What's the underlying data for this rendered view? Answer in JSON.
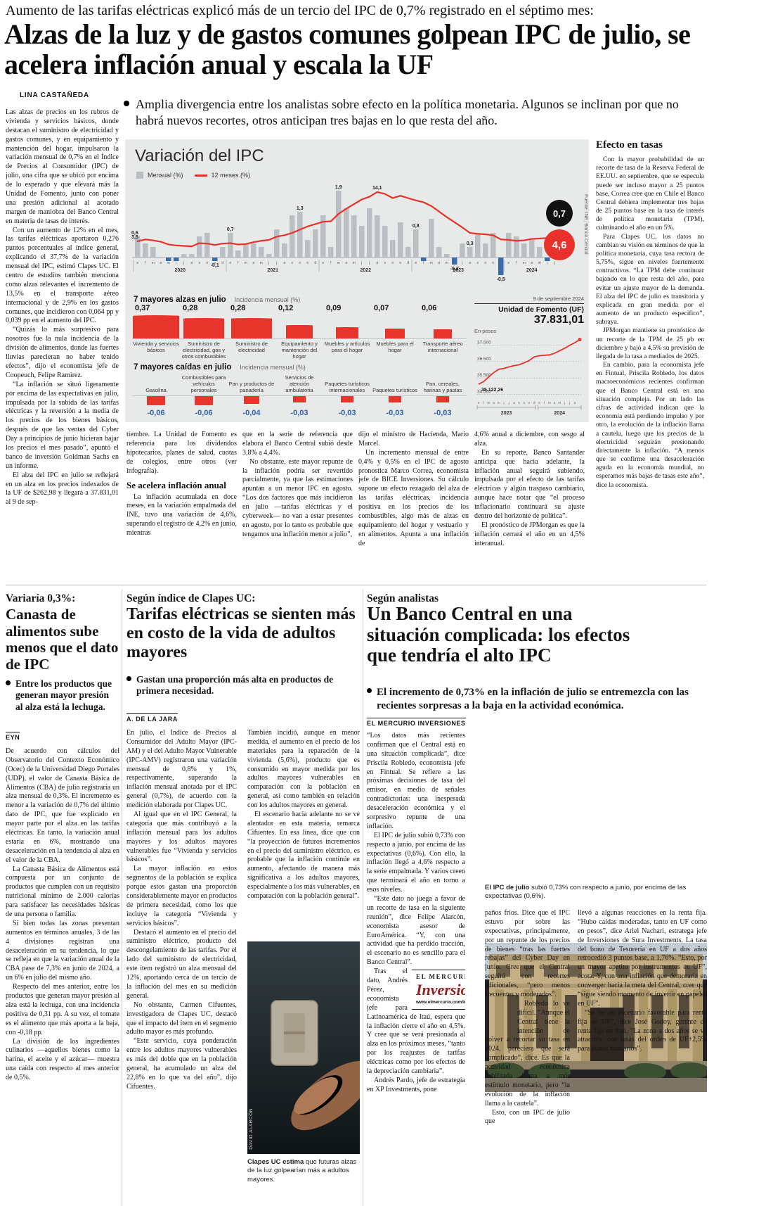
{
  "lead": {
    "kicker": "Aumento de las tarifas eléctricas explicó más de un tercio del IPC de 0,7% registrado en el séptimo mes:",
    "headline": "Alzas de la luz y de gastos comunes golpean IPC de julio, se acelera inflación anual y escala la UF",
    "byline": "LINA CASTAÑEDA",
    "lede": "Amplia divergencia entre los analistas sobre efecto en la política monetaria. Algunos se inclinan por que no habrá nuevos recortes, otros anticipan tres bajas en lo que resta del año.",
    "col1": [
      "Las alzas de precios en los rubros de vivienda y servicios básicos, donde destacan el suministro de electricidad y gastos comunes, y en equipamiento y mantención del hogar, impulsaron la variación mensual de 0,7% en el Índice de Precios al Consumidor (IPC) de julio, una cifra que se ubicó por encima de lo esperado y que elevará más la Unidad de Fomento, junto con poner una presión adicional al acotado margen de maniobra del Banco Central en materia de tasas de interés.",
      "Con un aumento de 12% en el mes, las tarifas eléctricas aportaron 0,276 puntos porcentuales al índice general, explicando el 37,7% de la variación mensual del IPC, estimó Clapes UC. El centro de estudios también menciona como alzas relevantes el incremento de 13,5% en el transporte aéreo internacional y de 2,9% en los gastos comunes, que incidieron con 0,064 pp y 0,039 pp en el aumento del IPC.",
      "“Quizás lo más sorpresivo para nosotros fue la nula incidencia de la división de alimentos, donde las fuertes lluvias parecieran no haber tenido efectos”, dijo el economista jefe de Coopeuch, Felipe Ramírez.",
      "“La inflación se situó ligeramente por encima de las expectativas en julio, impulsada por la subida de las tarifas eléctricas y la reversión a la media de los precios de los bienes básicos, después de que las ventas del Cyber Day a principios de junio hicieran bajar los precios el mes pasado”, apuntó el banco de inversión Goldman Sachs en un informe.",
      "El alza del IPC en julio se reflejará en un alza en los precios indexados de la UF de $262,98 y llegará a 37.831,01 al 9 de sep-"
    ],
    "cont1_pre": [
      "tiembre. La Unidad de Fomento es referencia para los dividendos hipotecarios, planes de salud, cuotas de colegios, entre otros (ver infografía)."
    ],
    "subhead": "Se acelera inflación anual",
    "cont1_post": [
      "La inflación acumulada en doce meses, en la variación empalmada del INE, tuvo una variación de 4,6%, superando el registro de 4,2% en junio, mientras"
    ],
    "cont2": [
      "que en la serie de referencia que elabora el Banco Central subió desde 3,8% a 4,4%.",
      "No obstante, este mayor repunte de la inflación podría ser revertido parcialmente, ya que las estimaciones apuntan a un menor IPC en agosto. “Los dos factores que más incidieron en julio —tarifas eléctricas y el cyberweek— no van a estar presentes en agosto, por lo tanto es probable que tengamos una inflación menor a julio”,"
    ],
    "cont3": [
      "dijo el ministro de Hacienda, Mario Marcel.",
      "Un incremento mensual de entre 0,4% y 0,5% en el IPC de agosto pronostica Marco Correa, economista jefe de BICE Inversiones. Su cálculo supone un efecto rezagado del alza de las tarifas eléctricas, incidencia positiva en los precios de los combustibles, algo más de alzas en equipamiento del hogar y vestuario y en alimentos. Apunta a una inflación de"
    ],
    "cont4": [
      "4,6% anual a diciembre, con sesgo al alza.",
      "En su reporte, Banco Santander anticipa que hacia adelante, la inflación anual seguirá subiendo, impulsada por el efecto de las tarifas eléctricas y algún traspaso cambiario, aunque hace notar que “el proceso inflacionario continuará su ajuste dentro del horizonte de política”.",
      "El pronóstico de JPMorgan es que la inflación cerrará el año en un 4,5% interanual."
    ]
  },
  "efecto": {
    "title": "Efecto en tasas",
    "paragraphs": [
      "Con la mayor probabilidad de un recorte de tasa de la Reserva Federal de EE.UU. en septiembre, que se especula puede ser incluso mayor a 25 puntos base, Correa cree que en Chile el Banco Central debiera implementar tres bajas de 25 puntos base en la tasa de interés de política monetaria (TPM), culminando el año en un 5%.",
      "Para Clapes UC, los datos no cambian su visión en términos de que la política monetaria, cuya tasa rectora de 5,75%, sigue en niveles fuertemente contractivos. “La TPM debe continuar bajando en lo que resta del año, para evitar un ajuste mayor de la demanda. El alza del IPC de julio es transitoria y explicada en gran medida por el aumento de un producto específico”, subraya.",
      "JPMorgan mantiene su pronóstico de un recorte de la TPM de 25 pb en diciembre y bajó a 4,5% su previsión de llegada de la tasa a mediados de 2025.",
      "En cambio, para la economista jefe en Fintual, Priscila Robledo, los datos macroeconómicos recientes confirman que el Banco Central está en una situación compleja. Por un lado las cifras de actividad indican que la economía está perdiendo impulso y por otro, la evolución de la inflación llama a cautela, luego que los precios de la electricidad seguirán presionando directamente la inflación. “A menos que se confirme una desaceleración aguda en la economía mundial, no esperamos más bajas de tasas este año”, dice la economista."
    ]
  },
  "infographic": {
    "title": "Variación del IPC",
    "legend_monthly": "Mensual (%)",
    "legend_12m": "12 meses (%)",
    "final_monthly": "0,7",
    "final_annual": "4,6",
    "source": "Fuente: INE, Banco Central",
    "alzas": {
      "heading": "7 mayores alzas en julio",
      "subheading": "Incidencia mensual (%)",
      "items": [
        {
          "value": "0,37",
          "num": 0.37,
          "label": "Vivienda y servicios básicos"
        },
        {
          "value": "0,28",
          "num": 0.28,
          "label": "Suministro de electricidad, gas y otros combustibles"
        },
        {
          "value": "0,28",
          "num": 0.28,
          "label": "Suministro de electricidad"
        },
        {
          "value": "0,12",
          "num": 0.12,
          "label": "Equipamiento y mantención del hogar"
        },
        {
          "value": "0,09",
          "num": 0.09,
          "label": "Muebles y artículos para el hogar"
        },
        {
          "value": "0,07",
          "num": 0.07,
          "label": "Muebles para el hogar"
        },
        {
          "value": "0,06",
          "num": 0.06,
          "label": "Transporte aéreo internacional"
        }
      ]
    },
    "caidas": {
      "heading": "7 mayores caídas en julio",
      "subheading": "Incidencia mensual (%)",
      "items": [
        {
          "value": "-0,06",
          "num": 0.06,
          "label": "Gasolina"
        },
        {
          "value": "-0,06",
          "num": 0.06,
          "label": "Combustibles para vehículos personales"
        },
        {
          "value": "-0,04",
          "num": 0.04,
          "label": "Pan y productos de panadería"
        },
        {
          "value": "-0,03",
          "num": 0.03,
          "label": "Servicios de atención ambulatoria"
        },
        {
          "value": "-0,03",
          "num": 0.03,
          "label": "Paquetes turísticos internacionales"
        },
        {
          "value": "-0,03",
          "num": 0.03,
          "label": "Paquetes turísticos"
        },
        {
          "value": "-0,03",
          "num": 0.03,
          "label": "Pan, cereales, harinas y pastas"
        }
      ]
    },
    "uf": {
      "date": "9 de septiembre 2024",
      "title": "Unidad de Fomento (UF)",
      "value": "37.831,01",
      "unit": "En pesos"
    }
  },
  "chart_data": [
    {
      "id": "ipc",
      "type": "bar",
      "title": "Variación del IPC",
      "legend": [
        "Mensual (%)",
        "12 meses (%)"
      ],
      "years": [
        "2020",
        "2021",
        "2022",
        "2023",
        "2024"
      ],
      "month_letters": [
        "e",
        "f",
        "m",
        "a",
        "m",
        "j",
        "j",
        "a",
        "s",
        "o",
        "n",
        "d"
      ],
      "monthly": [
        0.6,
        0.4,
        0.3,
        0.0,
        -0.1,
        -0.1,
        0.1,
        0.1,
        0.6,
        0.7,
        -0.1,
        0.3,
        0.7,
        0.2,
        0.4,
        0.4,
        0.3,
        0.1,
        0.8,
        0.4,
        1.2,
        1.3,
        0.5,
        0.8,
        1.2,
        0.3,
        1.9,
        1.4,
        1.2,
        0.9,
        1.4,
        1.2,
        0.9,
        0.5,
        1.0,
        0.3,
        0.8,
        -0.1,
        1.1,
        0.3,
        0.1,
        -0.2,
        0.4,
        0.3,
        0.7,
        0.4,
        0.7,
        -0.5,
        0.7,
        0.6,
        0.4,
        0.5,
        0.3,
        -0.1,
        0.7
      ],
      "twelve_month": [
        3.5,
        3.9,
        3.7,
        3.4,
        2.8,
        2.6,
        2.5,
        2.4,
        3.1,
        3.0,
        2.7,
        3.0,
        3.1,
        2.8,
        2.9,
        3.3,
        3.6,
        3.8,
        4.5,
        4.8,
        5.3,
        6.0,
        6.7,
        7.2,
        7.7,
        7.8,
        9.4,
        10.5,
        11.5,
        12.5,
        13.1,
        14.1,
        13.7,
        12.8,
        13.3,
        12.8,
        12.3,
        11.9,
        11.1,
        9.9,
        8.7,
        7.6,
        6.5,
        5.3,
        5.1,
        5.0,
        4.8,
        3.9,
        3.8,
        3.6,
        3.7,
        4.0,
        4.1,
        4.2,
        4.6
      ],
      "callouts": [
        {
          "index": 0,
          "text": "0,6",
          "series": "bar"
        },
        {
          "index": 10,
          "text": "-0,1",
          "series": "bar"
        },
        {
          "index": 12,
          "text": "0,7",
          "series": "bar"
        },
        {
          "index": 21,
          "text": "1,3",
          "series": "bar"
        },
        {
          "index": 26,
          "text": "1,9",
          "series": "bar"
        },
        {
          "index": 0,
          "text": "3,5",
          "series": "line"
        },
        {
          "index": 31,
          "text": "14,1",
          "series": "line"
        },
        {
          "index": 36,
          "text": "0,8",
          "series": "bar"
        },
        {
          "index": 41,
          "text": "-0,2",
          "series": "bar"
        },
        {
          "index": 43,
          "text": "0,3",
          "series": "bar"
        },
        {
          "index": 47,
          "text": "-0,5",
          "series": "bar"
        }
      ],
      "source": "Fuente: INE, Banco Central"
    },
    {
      "id": "uf",
      "type": "line",
      "title": "Unidad de Fomento (UF)",
      "date_label": "9 de septiembre 2024",
      "value_label": "37.831,01",
      "unit_label": "En pesos",
      "start_label": "35.122,26",
      "gridlines": [
        {
          "label": "37.500",
          "value": 37500
        },
        {
          "label": "36.500",
          "value": 36500
        },
        {
          "label": "35.500",
          "value": 35500
        },
        {
          "label": "34.500",
          "value": 34500
        }
      ],
      "ylim": [
        34400,
        37900
      ],
      "x_letters_2023": "efmamjjasond",
      "x_letters_2024": "efmamjja",
      "years": [
        "2023",
        "2024"
      ],
      "values": [
        35122,
        35280,
        35560,
        35830,
        36030,
        36080,
        36170,
        36250,
        36300,
        36420,
        36560,
        36780,
        36850,
        36880,
        36900,
        37000,
        37150,
        37300,
        37480,
        37640,
        37831
      ]
    }
  ],
  "canasta": {
    "kicker": "Variaría 0,3%:",
    "headline": "Canasta de alimentos sube menos que el dato de IPC",
    "dek": "Entre los productos que generan mayor presión al alza está la lechuga.",
    "byline": "EYN",
    "paragraphs": [
      "De acuerdo con cálculos del Observatorio del Contexto Económico (Ocec) de la Universidad Diego Portales (UDP), el valor de Canasta Básica de Alimentos (CBA) de julio registraría un alza mensual de 0,3%. El incremento es menor a la variación de 0,7% del último dato de IPC, que fue explicado en mayor parte por el alza en las tarifas eléctricas. En tanto, la variación anual estaría en 6%, mostrando una desaceleración en la tendencia al alza en el valor de la CBA.",
      "La Canasta Básica de Alimentos está compuesta por un conjunto de productos que cumplen con un requisito nutricional mínimo de 2.000 calorías para satisfacer las necesidades básicas de una persona o familia.",
      "Si bien todas las zonas presentan aumentos en términos anuales, 3 de las 4 divisiones registran una desaceleración en su tendencia, lo que se refleja en que la variación anual de la CBA pase de 7,3% en junio de 2024, a un 6% en julio del mismo año.",
      "Respecto del mes anterior, entre los productos que generan mayor presión al alza está la lechuga, con una incidencia positiva de 0,31 pp. A su vez, el tomate es el alimento que más aporta a la baja, con -0,18 pp.",
      "La división de los ingredientes culinarios —aquellos bienes como la harina, el aceite y el azúcar— muestra una caída con respecto al mes anterior de 0,5%."
    ]
  },
  "adultos": {
    "kicker": "Según índice de Clapes UC:",
    "headline": "Tarifas eléctricas se sienten más en costo de la vida de adultos mayores",
    "dek": "Gastan una proporción más alta en productos de primera necesidad.",
    "byline": "A. DE LA JARA",
    "col1": [
      "En julio, el Índice de Precios al Consumidor del Adulto Mayor (IPC-AM) y el del Adulto M­ayor Vulnerable (IPC-AMV) registraron una variación mensual de 0,8% y 1%, respectivamente, superando la inflación mensual anotada por el IPC general (0,7%), de acuerdo con la medición elaborada por Clapes UC.",
      "Al igual que en el IPC General, la categoría que más contribuyó a la inflación mensual para los adultos mayores y los adultos mayores vulnerables fue “Vivienda y servicios básicos”.",
      "La mayor inflación en estos segmentos de la población se explica porque estos gastan una proporción considerablemente mayor en productos de primera necesidad, como los que incluye la categoría “Vivienda y servicios básicos”.",
      "Destacó el aumento en el precio del suministro eléctrico, producto del descongelamiento de las tarifas. Por el lado del suministro de electricidad, este ítem registró un alza mensual del 12%, aportando cerca de un tercio de la inflación del mes en su medición general.",
      "No obstante, Carmen Cifuentes, investigadora de Clapes UC, destacó que el impacto del ítem en el segmento adulto mayor es más profundo.",
      "“Este servicio, cuya ponderación entre los adultos mayores vulnerables es más del doble que en la población general, ha acumulado un alza del 22,8% en lo que va del año”, dijo Cifuentes."
    ],
    "col2": [
      "También incidió, aunque en menor medida, el aumento en el precio de los materiales para la reparación de la vivienda (5,6%), producto que es consumido en mayor medida por los adultos mayores vulnerables en comparación con la población en general, así como también en relación con los adultos mayores en general.",
      "El escenario hacia adelante no se ve alentador en esta materia, remarca Cifuentes. En esa línea, dice que con “la proyección de futuros incrementos en el precio del suministro eléctrico, es probable que la inflación continúe en aumento, afectando de manera más significativa a los adultos mayores, especialmente a los más vulnerables, en comparación con la población general”."
    ],
    "caption_bold": "Clapes UC estima",
    "caption_rest": " que futuras alzas de la luz golpearían más a adultos mayores.",
    "credit": "DAVID ALARCÓN"
  },
  "banco": {
    "kicker": "Según analistas",
    "headline": "Un Banco Central en una situación complicada: los efectos que tendría el alto IPC",
    "dek": "El incremento de 0,73% en la inflación de julio se entremezcla con las recientes sorpresas a la baja en la actividad económica.",
    "byline": "EL MERCURIO INVERSIONES",
    "caption_bold": "El IPC de julio",
    "caption_rest": " subió 0,73% con respecto a junio, por encima de las expectativas (0,6%).",
    "col1a": [
      "“Los datos más recientes confirman que el Central está en una situación complicada”, dice Priscila Robledo, economista jefe en Fintual. Se refiere a las próximas decisiones de tasa del emisor, en medio de señales contradictorias: una inesperada desaceleración económica y el sorpresivo repunte de una inflación.",
      "El IPC de julio subió 0,73% con respecto a junio, por encima de las expectativas (0,6%). Con ello, la inflación llegó a 4,6% respecto a la serie empalmada. Y varios creen que terminará el año en torno a esos niveles.",
      "“Este dato no juega a favor de un recorte de tasa en la siguiente reunión”, dice Felipe Alarcón, economista asesor de EuroAmérica. “Y, con una actividad que ha perdido tracción, el escenario no es sencillo para el Banco Central”."
    ],
    "col1b": [
      "Tras el dato, Andrés Pérez, economista jefe para Latinoamérica de Itaú, espera que la inflación cierre el año en 4,5%. Y cree que se verá presionada al alza en los próximos meses, “tanto por los reajustes de tarifas eléctricas como por los efectos de la depreciación cambiaria”.",
      "Andrés Pardo, jefe de estrategia en XP Investments, pone"
    ],
    "col2a": [
      "paños fríos. Dice que el IPC estuvo por sobre las expectativas, principalmente, por un repunte de los precios de bienes “tras las fuertes rebajas” del Cyber Day en junio. Cree que el Central seguirá con recortes adicionales, “pero menos frecuentes y moderados”."
    ],
    "col2b": [
      "Robledo lo ve difícil. “Aunque el Central tiene la intención de volver a recortar su tasa en 2024, pareciera que será complicado”, dice. Es que la actividad económica debilitada llama a más estímulo monetario, pero “la evolución de la inflación llama a la cautela”.",
      "Esto, con un IPC de julio que"
    ],
    "col3": [
      "llevó a algunas reacciones en la renta fija. “Hubo caídas moderadas, tanto en UF como en pesos”, dice Ariel Nachari, estratega jefe de Inversiones de Sura Investments. La tasa del bono de Tesorería en UF a dos años retrocedió 3 puntos base, a 1,76%. “Esto, por un mayor apetito por instrumentos en UF”, acota. Y, con una inflación que demoraría en converger hacia la meta del Central, cree que “sigue siendo momento de invertir en papeles en UF”.",
      "“Se ve un escenario favorable para renta fija en UF”, dice José Godoy, gerente de renta fija en Itaú. “La zona a dos años se ve atractiva, con tasas del orden de UF+2,5% para bonos bancarios”."
    ],
    "logo": {
      "brand": "EL MERCURIO",
      "name": "Inversiones",
      "url": "www.elmercurio.com/inversiones"
    }
  }
}
